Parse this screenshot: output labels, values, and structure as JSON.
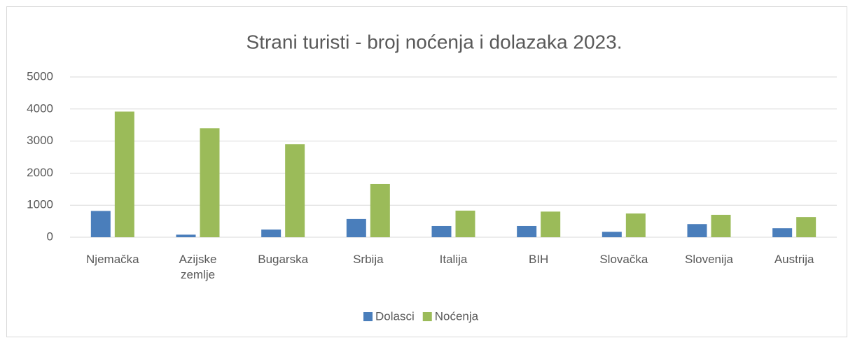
{
  "chart_data": {
    "type": "bar",
    "title": "Strani turisti - broj noćenja i dolazaka 2023.",
    "categories": [
      "Njemačka",
      "Azijske zemlje",
      "Bugarska",
      "Srbija",
      "Italija",
      "BIH",
      "Slovačka",
      "Slovenija",
      "Austrija"
    ],
    "series": [
      {
        "name": "Dolasci",
        "color": "#4a7ebb",
        "values": [
          820,
          80,
          240,
          570,
          350,
          350,
          170,
          410,
          280
        ]
      },
      {
        "name": "Noćenja",
        "color": "#9bbb59",
        "values": [
          3920,
          3400,
          2900,
          1660,
          830,
          800,
          740,
          700,
          630
        ]
      }
    ],
    "ylim": [
      0,
      5000
    ],
    "yticks": [
      0,
      1000,
      2000,
      3000,
      4000,
      5000
    ],
    "grid": true,
    "legend": "bottom"
  }
}
